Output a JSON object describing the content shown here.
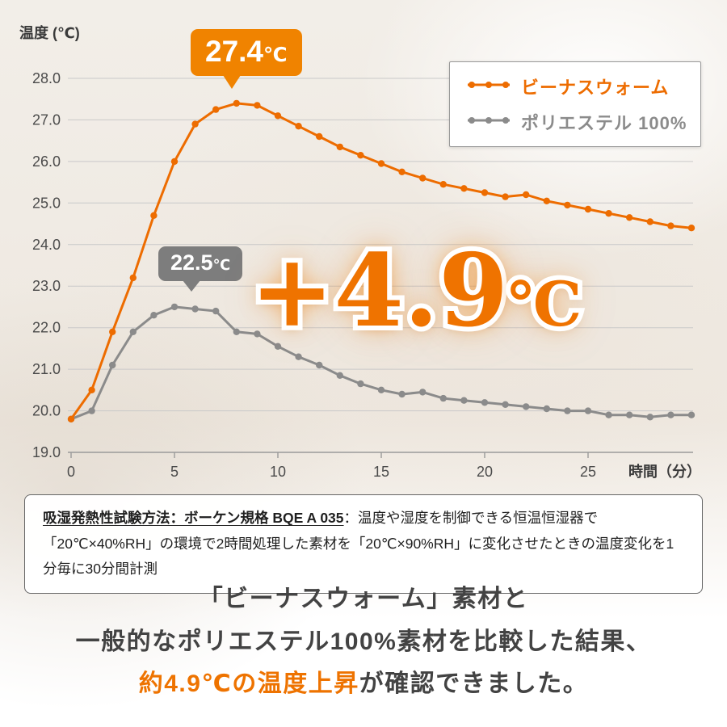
{
  "colors": {
    "accent_orange": "#ed6c00",
    "callout_orange": "#f08300",
    "highlight_orange": "#ef7300",
    "line_gray": "#8b8b8b",
    "callout_gray": "#7d7d7d",
    "text_dark": "#434343"
  },
  "chart_data": {
    "type": "line",
    "title": "",
    "ylabel": "温度 (℃)",
    "xlabel": "時間（分）",
    "ylim": [
      19.0,
      28.0
    ],
    "yticks": [
      19.0,
      20.0,
      21.0,
      22.0,
      23.0,
      24.0,
      25.0,
      26.0,
      27.0,
      28.0
    ],
    "xticks": [
      0,
      5,
      10,
      15,
      20,
      25
    ],
    "grid": true,
    "legend_position": "top-right",
    "x": [
      0,
      1,
      2,
      3,
      4,
      5,
      6,
      7,
      8,
      9,
      10,
      11,
      12,
      13,
      14,
      15,
      16,
      17,
      18,
      19,
      20,
      21,
      22,
      23,
      24,
      25,
      26,
      27,
      28,
      29,
      30
    ],
    "series": [
      {
        "name": "ビーナスウォーム",
        "color": "#ed6c00",
        "values": [
          19.8,
          20.5,
          21.9,
          23.2,
          24.7,
          26.0,
          26.9,
          27.25,
          27.4,
          27.35,
          27.1,
          26.85,
          26.6,
          26.35,
          26.15,
          25.95,
          25.75,
          25.6,
          25.45,
          25.35,
          25.25,
          25.15,
          25.2,
          25.05,
          24.95,
          24.85,
          24.75,
          24.65,
          24.55,
          24.45,
          24.4
        ]
      },
      {
        "name": "ポリエステル 100%",
        "color": "#8b8b8b",
        "values": [
          19.8,
          20.0,
          21.1,
          21.9,
          22.3,
          22.5,
          22.45,
          22.4,
          21.9,
          21.85,
          21.55,
          21.3,
          21.1,
          20.85,
          20.65,
          20.5,
          20.4,
          20.45,
          20.3,
          20.25,
          20.2,
          20.15,
          20.1,
          20.05,
          20.0,
          20.0,
          19.9,
          19.9,
          19.85,
          19.9,
          19.9
        ]
      }
    ]
  },
  "annotations": {
    "venus_peak": {
      "value": "27.4",
      "unit": "℃"
    },
    "poly_peak": {
      "value": "22.5",
      "unit": "℃"
    },
    "difference": {
      "value": "+4.9",
      "unit": "℃"
    }
  },
  "note": {
    "heading": "吸湿発熱性試験方法：ボーケン規格 BQE A 035",
    "body": "：温度や湿度を制御できる恒温恒湿器で「20℃×40%RH」の環境で2時間処理した素材を「20℃×90%RH」に変化させたときの温度変化を1分毎に30分間計測"
  },
  "caption": {
    "line1": "「ビーナスウォーム」素材と",
    "line2": "一般的なポリエステル100%素材を比較した結果、",
    "line3_highlight": "約4.9℃の温度上昇",
    "line3_rest": "が確認できました。"
  }
}
